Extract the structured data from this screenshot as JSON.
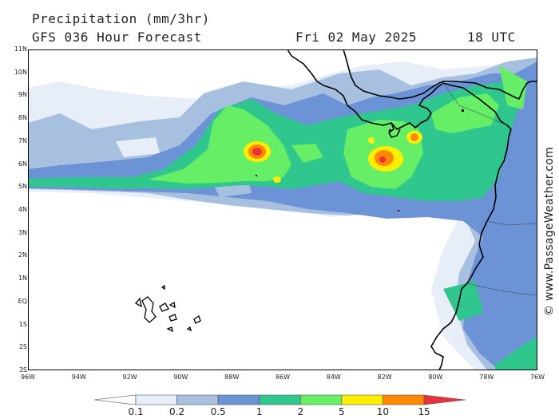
{
  "header": {
    "title": "Precipitation (mm/3hr)",
    "subtitle": "GFS 036 Hour Forecast",
    "date": "Fri 02 May 2025",
    "time": "18 UTC"
  },
  "credit": "© www.PassageWeather.com",
  "map": {
    "lon_range": [
      -96,
      -76
    ],
    "lat_range": [
      -3,
      11
    ],
    "lat_labels": [
      "11N",
      "10N",
      "9N",
      "8N",
      "7N",
      "6N",
      "5N",
      "4N",
      "3N",
      "2N",
      "1N",
      "EQ",
      "1S",
      "2S",
      "3S"
    ],
    "lon_labels": [
      "96W",
      "94W",
      "92W",
      "90W",
      "88W",
      "86W",
      "84W",
      "82W",
      "80W",
      "78W",
      "76W"
    ],
    "colors": {
      "land_outline": "#000000",
      "border": "#444444",
      "frame": "#000000"
    }
  },
  "legend": {
    "values": [
      "0.1",
      "0.2",
      "0.5",
      "1",
      "2",
      "5",
      "10",
      "15"
    ],
    "colors": [
      "#ffffff",
      "#e8eef8",
      "#a8c0e0",
      "#6b93d6",
      "#30c78f",
      "#66ee66",
      "#ffee00",
      "#ff8800",
      "#e8323c"
    ]
  }
}
